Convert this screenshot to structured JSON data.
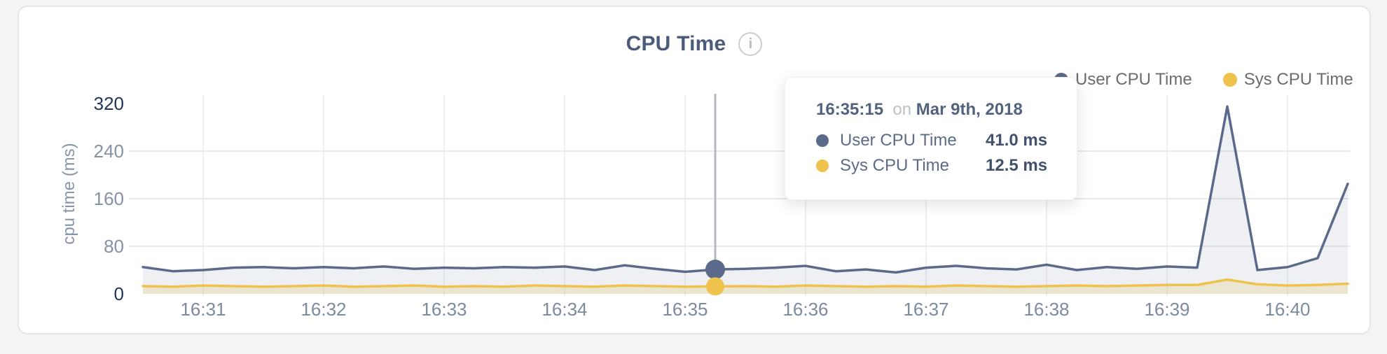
{
  "header": {
    "info_icon_glyph": "i"
  },
  "yaxis": {
    "title": "cpu time (ms)"
  },
  "legend": {
    "items": [
      {
        "label": "User CPU Time",
        "color": "#5b6a8a"
      },
      {
        "label": "Sys CPU Time",
        "color": "#eec24d"
      }
    ]
  },
  "tooltip": {
    "time": "16:35:15",
    "connector": "on",
    "date": "Mar 9th, 2018",
    "hover_time": "16:35:15",
    "rows": [
      {
        "label": "User CPU Time",
        "value": "41.0 ms",
        "value_num": 41.0,
        "color": "#5b6a8a"
      },
      {
        "label": "Sys CPU Time",
        "value": "12.5 ms",
        "value_num": 12.5,
        "color": "#eec24d"
      }
    ]
  },
  "chart_data": {
    "type": "line",
    "title": "CPU Time",
    "xlabel": "",
    "ylabel": "cpu time (ms)",
    "ylim": [
      0,
      320
    ],
    "yticks": [
      0,
      80,
      160,
      240,
      320
    ],
    "xticks": [
      "16:31",
      "16:32",
      "16:33",
      "16:34",
      "16:35",
      "16:36",
      "16:37",
      "16:38",
      "16:39",
      "16:40"
    ],
    "grid": true,
    "legend_position": "top-right",
    "x": [
      "16:30:30",
      "16:30:45",
      "16:31:00",
      "16:31:15",
      "16:31:30",
      "16:31:45",
      "16:32:00",
      "16:32:15",
      "16:32:30",
      "16:32:45",
      "16:33:00",
      "16:33:15",
      "16:33:30",
      "16:33:45",
      "16:34:00",
      "16:34:15",
      "16:34:30",
      "16:34:45",
      "16:35:00",
      "16:35:15",
      "16:35:30",
      "16:35:45",
      "16:36:00",
      "16:36:15",
      "16:36:30",
      "16:36:45",
      "16:37:00",
      "16:37:15",
      "16:37:30",
      "16:37:45",
      "16:38:00",
      "16:38:15",
      "16:38:30",
      "16:38:45",
      "16:39:00",
      "16:39:15",
      "16:39:30",
      "16:39:45",
      "16:40:00",
      "16:40:15",
      "16:40:30"
    ],
    "series": [
      {
        "name": "User CPU Time",
        "color": "#5b6a8a",
        "fill": "rgba(91,106,138,0.10)",
        "unit": "ms",
        "values": [
          45,
          38,
          40,
          44,
          45,
          43,
          45,
          43,
          46,
          42,
          44,
          43,
          45,
          44,
          46,
          40,
          48,
          42,
          37,
          41,
          42,
          44,
          47,
          38,
          41,
          36,
          44,
          47,
          43,
          41,
          49,
          40,
          45,
          42,
          46,
          44,
          315,
          40,
          45,
          60,
          185
        ]
      },
      {
        "name": "Sys CPU Time",
        "color": "#eec24d",
        "fill": "rgba(231,213,156,0.38)",
        "unit": "ms",
        "values": [
          13,
          12,
          14,
          13,
          12,
          13,
          14,
          12,
          13,
          14,
          12,
          13,
          12,
          14,
          13,
          12,
          14,
          13,
          12,
          12.5,
          13,
          12,
          14,
          13,
          12,
          13,
          12,
          14,
          13,
          12,
          13,
          14,
          13,
          14,
          15,
          15,
          24,
          16,
          14,
          15,
          17
        ]
      }
    ]
  }
}
